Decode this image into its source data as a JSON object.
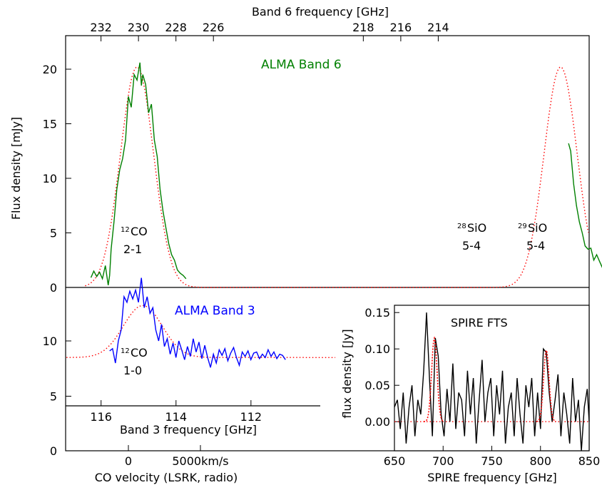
{
  "chart_data": [
    {
      "type": "line",
      "panel": "band6",
      "ylabel": "Flux density [mJy]",
      "top_axis_label": "Band 6 frequency [GHz]",
      "top_ticks": [
        "232",
        "230",
        "228",
        "226",
        "218",
        "216",
        "214"
      ],
      "top_tick_values_ghz": [
        232,
        230,
        228,
        226,
        218,
        216,
        214
      ],
      "yticks": [
        "0",
        "5",
        "10",
        "15",
        "20"
      ],
      "ylim": [
        0,
        23
      ],
      "xlim_kms": [
        -3000,
        38000
      ],
      "series": [
        {
          "name": "ALMA Band 6",
          "color": "#008000",
          "style": "solid",
          "x_kms": [
            -2600,
            -2400,
            -2200,
            -2000,
            -1800,
            -1600,
            -1400,
            -1300,
            -1200,
            -1000,
            -800,
            -600,
            -400,
            -200,
            0,
            200,
            400,
            600,
            800,
            900,
            1000,
            1200,
            1400,
            1600,
            1800,
            2000,
            2200,
            2400,
            2600,
            2800,
            3000,
            3200,
            3400,
            3600,
            3800,
            4000,
            30550,
            30700,
            30900,
            31100,
            31300,
            31500,
            31700,
            31900,
            32100,
            32300,
            32500,
            32700,
            32900,
            33100,
            33300,
            33500,
            33700,
            33900,
            34100,
            34300,
            34500,
            34700,
            34900,
            35100,
            35300,
            35500,
            35700,
            35900,
            36100,
            36300
          ],
          "y_mjy": [
            0.9,
            1.5,
            1.0,
            1.4,
            0.8,
            2.0,
            0.2,
            1.1,
            3.5,
            6.0,
            9.0,
            10.8,
            11.8,
            13.5,
            17.5,
            16.5,
            19.5,
            19.0,
            20.6,
            18.5,
            19.5,
            18.6,
            16.0,
            16.8,
            13.5,
            12.0,
            9.0,
            7.0,
            5.5,
            4.0,
            3.0,
            2.5,
            1.6,
            1.3,
            1.1,
            0.8,
            13.2,
            12.5,
            9.5,
            7.5,
            6.0,
            5.0,
            3.8,
            3.5,
            3.6,
            2.5,
            3.0,
            2.4,
            1.8,
            2.0,
            1.8,
            1.9,
            2.0,
            1.9,
            1.6,
            1.6,
            1.2,
            0.5,
            0.8,
            0.1,
            0.6,
            0.3,
            0.7,
            0.2,
            0.6,
            0.2
          ]
        },
        {
          "name": "",
          "color": "#ff0000",
          "style": "dotted",
          "peaks": [
            {
              "center_kms": 600,
              "amplitude": 20.2,
              "sigma_kms": 1150
            },
            {
              "center_kms": 30000,
              "amplitude": 20.2,
              "sigma_kms": 1150
            },
            {
              "center_kms": 34100,
              "amplitude": 1.8,
              "sigma_kms": 700
            }
          ]
        }
      ],
      "annotations": [
        {
          "text": "ALMA Band 6",
          "color": "#008000"
        },
        {
          "sup": "12",
          "text": "CO",
          "line2": "2-1"
        },
        {
          "sup": "28",
          "text": "SiO",
          "line2": "5-4"
        },
        {
          "sup": "29",
          "text": "SiO",
          "line2": "5-4"
        }
      ]
    },
    {
      "type": "line",
      "panel": "band3",
      "xlabel": "Band 3 frequency [GHz]",
      "xticks": [
        "116",
        "114",
        "112"
      ],
      "xtick_values_ghz": [
        116,
        114,
        112
      ],
      "yticks": [
        "5",
        "10"
      ],
      "series": [
        {
          "name": "ALMA Band 3",
          "color": "#0000ff",
          "style": "solid",
          "x_kms": [
            -1300,
            -1100,
            -900,
            -700,
            -500,
            -300,
            -100,
            100,
            300,
            500,
            700,
            900,
            1100,
            1300,
            1500,
            1700,
            1900,
            2100,
            2300,
            2500,
            2700,
            2900,
            3100,
            3300,
            3500,
            3700,
            3900,
            4100,
            4300,
            4500,
            4700,
            4900,
            5100,
            5300,
            5500,
            5700,
            5900,
            6100,
            6300,
            6500,
            6700,
            6900,
            7100,
            7300,
            7500,
            7700,
            7900,
            8100,
            8300,
            8500,
            8700,
            8900,
            9100,
            9300,
            9500,
            9700,
            9900,
            10100,
            10300,
            10500,
            10700,
            10900
          ],
          "y": [
            9.1,
            9.3,
            8.0,
            10.0,
            11.0,
            14.0,
            13.5,
            14.5,
            13.8,
            14.6,
            13.5,
            15.7,
            13.0,
            14.0,
            12.5,
            13.0,
            11.0,
            10.0,
            11.5,
            9.5,
            10.2,
            8.8,
            9.8,
            8.5,
            10.0,
            9.2,
            8.3,
            9.5,
            8.6,
            10.2,
            9.0,
            9.9,
            8.4,
            9.6,
            8.5,
            7.6,
            8.8,
            8.0,
            9.2,
            8.7,
            9.3,
            8.2,
            8.9,
            9.4,
            8.5,
            7.8,
            9.0,
            8.6,
            9.1,
            8.3,
            8.9,
            9.0,
            8.4,
            8.8,
            8.5,
            9.2,
            8.6,
            9.0,
            8.4,
            8.8,
            8.7,
            8.3
          ]
        },
        {
          "name": "",
          "color": "#ff0000",
          "style": "dotted",
          "baseline": 8.5,
          "peaks": [
            {
              "center_kms": 1000,
              "amplitude": 4.7,
              "sigma_kms": 1350
            }
          ]
        }
      ],
      "annotations": [
        {
          "text": "ALMA Band 3",
          "color": "#0000ff"
        },
        {
          "sup": "12",
          "text": "CO",
          "line2": "1-0"
        }
      ]
    },
    {
      "type": "line",
      "panel": "bottom_axis",
      "xlabel": "CO velocity (LSRK, radio)",
      "xticks": [
        "0",
        "5000km/s"
      ],
      "xtick_values_kms": [
        0,
        5000
      ],
      "yticks": [
        "0"
      ]
    },
    {
      "type": "line",
      "panel": "spire",
      "title": "SPIRE FTS",
      "xlabel": "SPIRE frequency [GHz]",
      "ylabel": "flux density [Jy]",
      "xlim": [
        650,
        850
      ],
      "ylim": [
        -0.04,
        0.16
      ],
      "xticks": [
        "650",
        "700",
        "750",
        "800",
        "850"
      ],
      "xtick_values": [
        650,
        700,
        750,
        800,
        850
      ],
      "yticks": [
        "0.00",
        "0.05",
        "0.10",
        "0.15"
      ],
      "ytick_values": [
        0.0,
        0.05,
        0.1,
        0.15
      ],
      "series": [
        {
          "name": "",
          "color": "#000000",
          "style": "solid",
          "x": [
            650,
            653,
            656,
            659,
            662,
            665,
            668,
            671,
            674,
            677,
            680,
            683,
            686,
            689,
            692,
            695,
            698,
            701,
            704,
            707,
            710,
            713,
            716,
            719,
            722,
            725,
            728,
            731,
            734,
            737,
            740,
            743,
            746,
            749,
            752,
            755,
            758,
            761,
            764,
            767,
            770,
            773,
            776,
            779,
            782,
            785,
            788,
            791,
            794,
            797,
            800,
            803,
            806,
            809,
            812,
            815,
            818,
            821,
            824,
            827,
            830,
            833,
            836,
            839,
            842,
            845,
            848,
            850
          ],
          "y": [
            0.02,
            0.03,
            -0.01,
            0.04,
            -0.03,
            0.02,
            0.05,
            -0.02,
            0.03,
            0.01,
            0.07,
            0.15,
            0.06,
            -0.02,
            0.115,
            0.09,
            0.01,
            -0.02,
            0.045,
            0.0,
            0.08,
            -0.01,
            0.04,
            0.03,
            -0.02,
            0.07,
            0.01,
            0.06,
            -0.03,
            0.03,
            0.085,
            0.0,
            0.04,
            0.06,
            -0.02,
            0.05,
            0.01,
            0.07,
            -0.03,
            0.02,
            0.04,
            -0.02,
            0.06,
            0.01,
            -0.03,
            0.05,
            0.02,
            0.06,
            -0.02,
            0.04,
            -0.01,
            0.1,
            0.095,
            0.04,
            0.0,
            0.03,
            0.065,
            -0.02,
            0.04,
            0.01,
            -0.03,
            0.06,
            0.0,
            0.03,
            -0.04,
            0.02,
            0.045,
            0.0
          ]
        },
        {
          "name": "",
          "color": "#ff0000",
          "style": "dotted",
          "peaks": [
            {
              "center": 691,
              "amplitude": 0.115,
              "sigma": 2.8
            },
            {
              "center": 806,
              "amplitude": 0.098,
              "sigma": 2.8
            }
          ]
        }
      ]
    }
  ]
}
